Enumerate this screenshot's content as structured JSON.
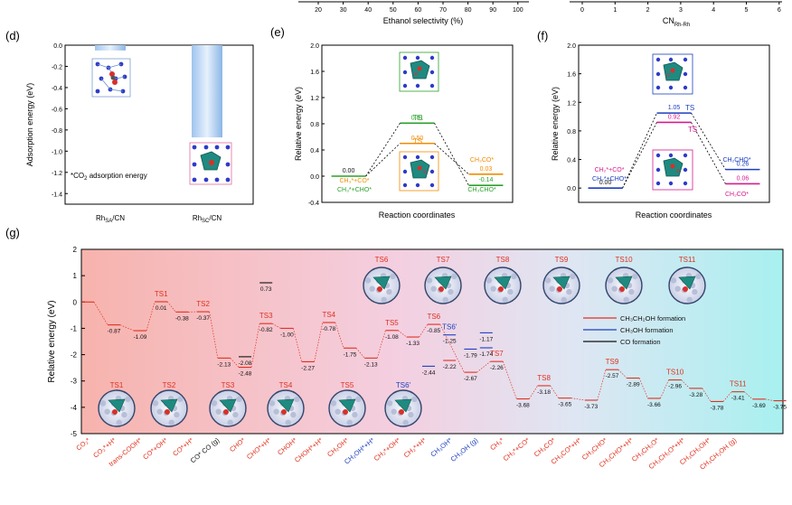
{
  "top_strip": {
    "ticks": [
      "20",
      "30",
      "40",
      "50",
      "60",
      "70",
      "80",
      "90",
      "100"
    ],
    "xlabel": "Ethanol selectivity (%)",
    "right_ticks": [
      "0",
      "1",
      "2",
      "3",
      "4",
      "5",
      "6"
    ],
    "right_xlabel_main": "CN",
    "right_xlabel_sub": "Rh-Rh"
  },
  "colors": {
    "red": "#e0301e",
    "blue": "#1c3fbf",
    "green": "#2ca02c",
    "orange": "#f28c00",
    "magenta": "#d81b8c",
    "black": "#111111"
  },
  "chart_data": [
    {
      "panel": "(d)",
      "type": "bar",
      "ylabel": "Adsorption energy (eV)",
      "ylim": [
        -1.5,
        0.0
      ],
      "yticks": [
        "0.0",
        "-0.2",
        "-0.4",
        "-0.6",
        "-0.8",
        "-1.0",
        "-1.2",
        "-1.4"
      ],
      "categories": [
        "Rh",
        "Rh"
      ],
      "category_subs": [
        "SA",
        "SC"
      ],
      "category_suffix": "/CN",
      "values": [
        -0.05,
        -0.87
      ],
      "annotation_pre": "*CO",
      "annotation_sub": "2",
      "annotation_post": " adsorption energy"
    },
    {
      "panel": "(e)",
      "type": "line",
      "ylabel": "Relative energy (eV)",
      "xlabel": "Reaction coordinates",
      "ylim": [
        -0.4,
        2.0
      ],
      "yticks": [
        "2.0",
        "1.6",
        "1.2",
        "0.8",
        "0.4",
        "0.0",
        "-0.4"
      ],
      "states": [
        {
          "value": 0.0,
          "label": "0.00",
          "color": "#2ca02c",
          "pos": 0
        },
        {
          "value": 0.81,
          "label": "0.81",
          "color": "#2ca02c",
          "pos": 1
        },
        {
          "value": 0.5,
          "label": "0.50",
          "color": "#f28c00",
          "pos": 1
        },
        {
          "value": 0.03,
          "label": "0.03",
          "color": "#f28c00",
          "pos": 2
        },
        {
          "value": -0.14,
          "label": "-0.14",
          "color": "#2ca02c",
          "pos": 2
        }
      ],
      "ts_labels": [
        "TS",
        "TS"
      ],
      "species": {
        "init_orange": "CH₃*+CO*",
        "init_green": "CH₃*+CHO*",
        "prod_orange": "CH₃CO*",
        "prod_green": "CH₃CHO*"
      }
    },
    {
      "panel": "(f)",
      "type": "line",
      "ylabel": "Relative energy (eV)",
      "xlabel": "Reaction coordinates",
      "ylim": [
        -0.2,
        2.0
      ],
      "yticks": [
        "2.0",
        "1.6",
        "1.2",
        "0.8",
        "0.4",
        "0.0"
      ],
      "states": [
        {
          "value": 0.0,
          "label": "0.00",
          "color": "#1c3fbf",
          "pos": 0
        },
        {
          "value": 1.05,
          "label": "1.05",
          "color": "#1c3fbf",
          "pos": 1
        },
        {
          "value": 0.92,
          "label": "0.92",
          "color": "#d81b8c",
          "pos": 1
        },
        {
          "value": 0.26,
          "label": "0.26",
          "color": "#1c3fbf",
          "pos": 2
        },
        {
          "value": 0.06,
          "label": "0.06",
          "color": "#d81b8c",
          "pos": 2
        }
      ],
      "ts_labels": [
        "TS",
        "TS"
      ],
      "species": {
        "init_magenta": "CH₂*+CO*",
        "init_blue": "CH₂*+CHO*",
        "prod_blue": "CH₂CHO*",
        "prod_magenta": "CH₂CO*"
      }
    },
    {
      "panel": "(g)",
      "type": "line",
      "ylabel": "Relative energy (eV)",
      "ylim": [
        -5,
        2
      ],
      "yticks": [
        "2",
        "1",
        "0",
        "-1",
        "-2",
        "-3",
        "-4",
        "-5"
      ],
      "legend": [
        {
          "label": "CH₃CH₂OH formation",
          "color": "#e0301e"
        },
        {
          "label": "CH₃OH formation",
          "color": "#1c3fbf"
        },
        {
          "label": "CO formation",
          "color": "#111111"
        }
      ],
      "levels": [
        {
          "x": 0,
          "y": 0.0,
          "label": "",
          "color": "#e0301e"
        },
        {
          "x": 1,
          "y": -0.87,
          "label": "-0.87",
          "color": "#e0301e"
        },
        {
          "x": 2,
          "y": -1.09,
          "label": "-1.09",
          "color": "#e0301e"
        },
        {
          "x": 2.8,
          "y": 0.01,
          "label": "0.01",
          "color": "#e0301e",
          "ts": "TS1"
        },
        {
          "x": 3.6,
          "y": -0.38,
          "label": "-0.38",
          "color": "#e0301e"
        },
        {
          "x": 4.4,
          "y": -0.37,
          "label": "-0.37",
          "color": "#e0301e",
          "ts": "TS2"
        },
        {
          "x": 5.2,
          "y": -2.13,
          "label": "-2.13",
          "color": "#e0301e"
        },
        {
          "x": 6.0,
          "y": -2.08,
          "label": "-2.08",
          "color": "#111111"
        },
        {
          "x": 6.0,
          "y": -2.48,
          "label": "-2.48",
          "color": "#e0301e"
        },
        {
          "x": 6.8,
          "y": 0.73,
          "label": "0.73",
          "color": "#111111"
        },
        {
          "x": 6.8,
          "y": -0.82,
          "label": "-0.82",
          "color": "#e0301e",
          "ts": "TS3"
        },
        {
          "x": 7.6,
          "y": -1.0,
          "label": "-1.00",
          "color": "#e0301e"
        },
        {
          "x": 8.4,
          "y": -2.27,
          "label": "-2.27",
          "color": "#e0301e"
        },
        {
          "x": 9.2,
          "y": -0.78,
          "label": "-0.78",
          "color": "#e0301e",
          "ts": "TS4"
        },
        {
          "x": 10.0,
          "y": -1.75,
          "label": "-1.75",
          "color": "#e0301e"
        },
        {
          "x": 10.8,
          "y": -2.13,
          "label": "-2.13",
          "color": "#e0301e"
        },
        {
          "x": 11.6,
          "y": -1.08,
          "label": "-1.08",
          "color": "#e0301e",
          "ts": "TS5"
        },
        {
          "x": 12.4,
          "y": -1.33,
          "label": "-1.33",
          "color": "#e0301e"
        },
        {
          "x": 13.0,
          "y": -2.44,
          "label": "-2.44",
          "color": "#1c3fbf"
        },
        {
          "x": 13.2,
          "y": -0.85,
          "label": "-0.85",
          "color": "#e0301e",
          "ts": "TS6"
        },
        {
          "x": 13.8,
          "y": -1.25,
          "label": "-1.25",
          "color": "#1c3fbf",
          "ts": "TS6'"
        },
        {
          "x": 13.8,
          "y": -2.22,
          "label": "-2.22",
          "color": "#e0301e"
        },
        {
          "x": 14.6,
          "y": -1.79,
          "label": "-1.79",
          "color": "#1c3fbf"
        },
        {
          "x": 14.6,
          "y": -2.67,
          "label": "-2.67",
          "color": "#e0301e"
        },
        {
          "x": 15.2,
          "y": -1.17,
          "label": "-1.17",
          "color": "#1c3fbf"
        },
        {
          "x": 15.2,
          "y": -1.74,
          "label": "-1.74",
          "color": "#1c3fbf"
        },
        {
          "x": 15.6,
          "y": -2.26,
          "label": "-2.26",
          "color": "#e0301e",
          "ts": "TS7"
        },
        {
          "x": 16.6,
          "y": -3.68,
          "label": "-3.68",
          "color": "#e0301e"
        },
        {
          "x": 17.4,
          "y": -3.18,
          "label": "-3.18",
          "color": "#e0301e",
          "ts": "TS8"
        },
        {
          "x": 18.2,
          "y": -3.65,
          "label": "-3.65",
          "color": "#e0301e"
        },
        {
          "x": 19.2,
          "y": -3.73,
          "label": "-3.73",
          "color": "#e0301e"
        },
        {
          "x": 20.0,
          "y": -2.57,
          "label": "-2.57",
          "color": "#e0301e",
          "ts": "TS9"
        },
        {
          "x": 20.8,
          "y": -2.89,
          "label": "-2.89",
          "color": "#e0301e"
        },
        {
          "x": 21.6,
          "y": -3.66,
          "label": "-3.66",
          "color": "#e0301e"
        },
        {
          "x": 22.4,
          "y": -2.96,
          "label": "-2.96",
          "color": "#e0301e",
          "ts": "TS10"
        },
        {
          "x": 23.2,
          "y": -3.28,
          "label": "-3.28",
          "color": "#e0301e"
        },
        {
          "x": 24.0,
          "y": -3.78,
          "label": "-3.78",
          "color": "#e0301e"
        },
        {
          "x": 24.8,
          "y": -3.41,
          "label": "-3.41",
          "color": "#e0301e",
          "ts": "TS11"
        },
        {
          "x": 25.6,
          "y": -3.69,
          "label": "-3.69",
          "color": "#e0301e"
        },
        {
          "x": 26.4,
          "y": -3.75,
          "label": "-3.75",
          "color": "#e0301e"
        }
      ],
      "top_ts_labels": [
        "TS6",
        "TS7",
        "TS8",
        "TS9",
        "TS10",
        "TS11"
      ],
      "bottom_ts_labels": [
        "TS1",
        "TS2",
        "TS3",
        "TS4",
        "TS5",
        "TS6'"
      ],
      "x_categories": [
        {
          "label": "CO₂*",
          "color": "#e0301e"
        },
        {
          "label": "CO₂*+H*",
          "color": "#e0301e"
        },
        {
          "label": "trans-COOH*",
          "color": "#e0301e"
        },
        {
          "label": "CO*+OH*",
          "color": "#e0301e"
        },
        {
          "label": "CO*+H*",
          "color": "#e0301e"
        },
        {
          "label": "CO* CO (g)",
          "color": "#111111"
        },
        {
          "label": "CHO*",
          "color": "#e0301e"
        },
        {
          "label": "CHO*+H*",
          "color": "#e0301e"
        },
        {
          "label": "CHOH*",
          "color": "#e0301e"
        },
        {
          "label": "CHOH*+H*",
          "color": "#e0301e"
        },
        {
          "label": "CH₂OH*",
          "color": "#e0301e"
        },
        {
          "label": "CH₂OH*+H*",
          "color": "#1c3fbf"
        },
        {
          "label": "CH₂*+OH*",
          "color": "#e0301e"
        },
        {
          "label": "CH₂*+H*",
          "color": "#e0301e"
        },
        {
          "label": "CH₃OH*",
          "color": "#1c3fbf"
        },
        {
          "label": "CH₃OH (g)",
          "color": "#1c3fbf"
        },
        {
          "label": "CH₃*",
          "color": "#e0301e"
        },
        {
          "label": "CH₃*+CO*",
          "color": "#e0301e"
        },
        {
          "label": "CH₃CO*",
          "color": "#e0301e"
        },
        {
          "label": "CH₃CO*+H*",
          "color": "#e0301e"
        },
        {
          "label": "CH₃CHO*",
          "color": "#e0301e"
        },
        {
          "label": "CH₃CHO*+H*",
          "color": "#e0301e"
        },
        {
          "label": "CH₃CH₂O*",
          "color": "#e0301e"
        },
        {
          "label": "CH₃CH₂O*+H*",
          "color": "#e0301e"
        },
        {
          "label": "CH₃CH₂OH*",
          "color": "#e0301e"
        },
        {
          "label": "CH₃CH₂OH (g)",
          "color": "#e0301e"
        }
      ]
    }
  ]
}
